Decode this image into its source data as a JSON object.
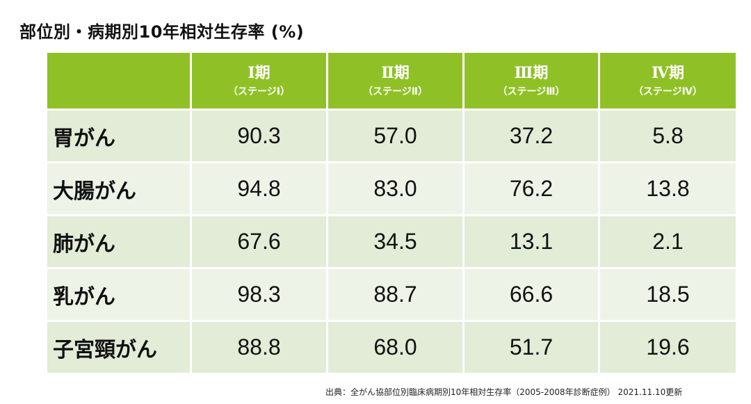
{
  "title": "部位別・病期別10年相対生存率 (%)",
  "chart_data": {
    "type": "table",
    "title": "部位別・病期別10年相対生存率 (%)",
    "columns": [
      {
        "label": "Ⅰ期",
        "sub": "（ステージⅠ）"
      },
      {
        "label": "Ⅱ期",
        "sub": "（ステージⅡ）"
      },
      {
        "label": "Ⅲ期",
        "sub": "（ステージⅢ）"
      },
      {
        "label": "Ⅳ期",
        "sub": "（ステージⅣ）"
      }
    ],
    "rows": [
      {
        "label": "胃がん",
        "values": [
          "90.3",
          "57.0",
          "37.2",
          "5.8"
        ]
      },
      {
        "label": "大腸がん",
        "values": [
          "94.8",
          "83.0",
          "76.2",
          "13.8"
        ]
      },
      {
        "label": "肺がん",
        "values": [
          "67.6",
          "34.5",
          "13.1",
          "2.1"
        ]
      },
      {
        "label": "乳がん",
        "values": [
          "98.3",
          "88.7",
          "66.6",
          "18.5"
        ]
      },
      {
        "label": "子宮頸がん",
        "values": [
          "88.8",
          "68.0",
          "51.7",
          "19.6"
        ]
      }
    ]
  },
  "source": "出典：全がん協部位別臨床病期別10年相対生存率（2005-2008年診断症例） 2021.11.10更新",
  "colors": {
    "header_bg": "#8fc127",
    "row_bg_dark": "#e2ecd6",
    "row_bg_light": "#eef3e8"
  }
}
